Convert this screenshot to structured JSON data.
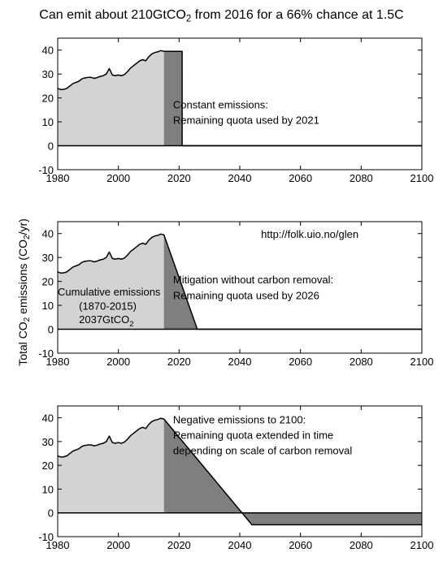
{
  "figure": {
    "title_pre": "Can emit about 210GtCO",
    "title_sub": "2",
    "title_post": " from 2016 for a 66% chance at 1.5C",
    "ylabel_pre": "Total CO",
    "ylabel_sub": "2",
    "ylabel_mid": " emissions (CO",
    "ylabel_sub2": "2",
    "ylabel_post": "/yr)"
  },
  "colors": {
    "historical_fill": "#d3d3d3",
    "remaining_fill": "#7f7f7f",
    "line": "#000000",
    "axis": "#000000"
  },
  "chart_data": [
    {
      "type": "area",
      "xlim": [
        1980,
        2100
      ],
      "ylim": [
        -10,
        45
      ],
      "xticks": [
        1980,
        2000,
        2020,
        2040,
        2060,
        2080,
        2100
      ],
      "yticks": [
        -10,
        0,
        10,
        20,
        30,
        40
      ],
      "grid": false,
      "historical": {
        "x": [
          1980,
          1981,
          1982,
          1983,
          1984,
          1985,
          1986,
          1987,
          1988,
          1989,
          1990,
          1991,
          1992,
          1993,
          1994,
          1995,
          1996,
          1997,
          1998,
          1999,
          2000,
          2001,
          2002,
          2003,
          2004,
          2005,
          2006,
          2007,
          2008,
          2009,
          2010,
          2011,
          2012,
          2013,
          2014,
          2015
        ],
        "y": [
          24,
          23.5,
          23.6,
          24,
          25,
          26,
          26.5,
          27,
          28,
          28.4,
          28.6,
          28.6,
          28.2,
          28.5,
          29,
          29.3,
          30,
          32.3,
          29.6,
          29.3,
          29.6,
          29.3,
          29.8,
          31,
          32.5,
          33.5,
          34.5,
          35.5,
          36,
          35.5,
          37.2,
          38.4,
          39,
          39.3,
          39.8,
          39.5
        ]
      },
      "remaining": {
        "x": [
          2015,
          2016,
          2021,
          2021
        ],
        "y": [
          39.5,
          39.5,
          39.5,
          0
        ]
      },
      "after": {
        "x": [
          2021,
          2100
        ],
        "y": [
          0,
          0
        ]
      },
      "annotations": [
        {
          "text": "Constant emissions:",
          "x": 2018,
          "y": 17
        },
        {
          "text": "Remaining quota used by 2021",
          "x": 2018,
          "y": 10.5
        }
      ]
    },
    {
      "type": "area",
      "xlim": [
        1980,
        2100
      ],
      "ylim": [
        -10,
        45
      ],
      "xticks": [
        1980,
        2000,
        2020,
        2040,
        2060,
        2080,
        2100
      ],
      "yticks": [
        -10,
        0,
        10,
        20,
        30,
        40
      ],
      "grid": false,
      "historical": {
        "x": [
          1980,
          1981,
          1982,
          1983,
          1984,
          1985,
          1986,
          1987,
          1988,
          1989,
          1990,
          1991,
          1992,
          1993,
          1994,
          1995,
          1996,
          1997,
          1998,
          1999,
          2000,
          2001,
          2002,
          2003,
          2004,
          2005,
          2006,
          2007,
          2008,
          2009,
          2010,
          2011,
          2012,
          2013,
          2014,
          2015
        ],
        "y": [
          24,
          23.5,
          23.6,
          24,
          25,
          26,
          26.5,
          27,
          28,
          28.4,
          28.6,
          28.6,
          28.2,
          28.5,
          29,
          29.3,
          30,
          32.3,
          29.6,
          29.3,
          29.6,
          29.3,
          29.8,
          31,
          32.5,
          33.5,
          34.5,
          35.5,
          36,
          35.5,
          37.2,
          38.4,
          39,
          39.3,
          39.8,
          39.5
        ]
      },
      "remaining": {
        "x": [
          2015,
          2026
        ],
        "y": [
          39.5,
          0
        ]
      },
      "after": {
        "x": [
          2026,
          2100
        ],
        "y": [
          0,
          0
        ]
      },
      "annotations": [
        {
          "text": "http://folk.uio.no/glen",
          "x": 2047,
          "y": 39.5
        },
        {
          "text": "Mitigation without carbon removal:",
          "x": 2018,
          "y": 20.5
        },
        {
          "text": "Remaining quota used by 2026",
          "x": 2018,
          "y": 14
        },
        {
          "text": "Cumulative emissions",
          "x": 1980,
          "y": 15.5
        },
        {
          "text": "(1870-2015)",
          "x": 1987,
          "y": 9.5
        },
        {
          "text": "2037GtCO",
          "sub": "2",
          "x": 1987,
          "y": 4
        }
      ]
    },
    {
      "type": "area",
      "xlim": [
        1980,
        2100
      ],
      "ylim": [
        -10,
        45
      ],
      "xticks": [
        1980,
        2000,
        2020,
        2040,
        2060,
        2080,
        2100
      ],
      "yticks": [
        -10,
        0,
        10,
        20,
        30,
        40
      ],
      "grid": false,
      "historical": {
        "x": [
          1980,
          1981,
          1982,
          1983,
          1984,
          1985,
          1986,
          1987,
          1988,
          1989,
          1990,
          1991,
          1992,
          1993,
          1994,
          1995,
          1996,
          1997,
          1998,
          1999,
          2000,
          2001,
          2002,
          2003,
          2004,
          2005,
          2006,
          2007,
          2008,
          2009,
          2010,
          2011,
          2012,
          2013,
          2014,
          2015
        ],
        "y": [
          24,
          23.5,
          23.6,
          24,
          25,
          26,
          26.5,
          27,
          28,
          28.4,
          28.6,
          28.6,
          28.2,
          28.5,
          29,
          29.3,
          30,
          32.3,
          29.6,
          29.3,
          29.6,
          29.3,
          29.8,
          31,
          32.5,
          33.5,
          34.5,
          35.5,
          36,
          35.5,
          37.2,
          38.4,
          39,
          39.3,
          39.8,
          39.5
        ]
      },
      "remaining": {
        "x": [
          2015,
          2044
        ],
        "y": [
          39.5,
          -5
        ]
      },
      "after": {
        "x": [
          2044,
          2100
        ],
        "y": [
          -5,
          -5
        ]
      },
      "annotations": [
        {
          "text": "Negative emissions to 2100:",
          "x": 2018,
          "y": 39
        },
        {
          "text": "Remaining quota extended in time",
          "x": 2018,
          "y": 32.5
        },
        {
          "text": "depending on scale of carbon removal",
          "x": 2018,
          "y": 26
        }
      ]
    }
  ]
}
